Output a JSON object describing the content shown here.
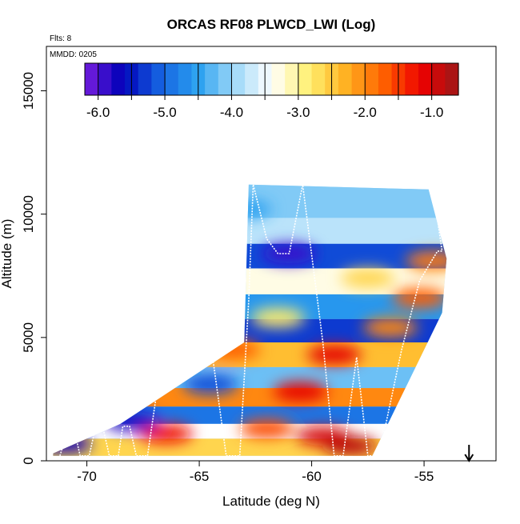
{
  "chart_data": {
    "type": "heatmap",
    "title": "ORCAS RF08 PLWCD_LWI (Log)",
    "subtitle_flights": "Flts: 8",
    "mmdd_label": "MMDD: 0205",
    "xlabel": "Latitude (deg N)",
    "ylabel": "Altitude (m)",
    "xlim": [
      -71.8,
      -51.8
    ],
    "ylim": [
      0,
      16800
    ],
    "x_ticks": [
      -70,
      -65,
      -60,
      -55
    ],
    "x_tick_labels": [
      "-70",
      "-65",
      "-60",
      "-55"
    ],
    "y_ticks": [
      0,
      5000,
      10000,
      15000
    ],
    "y_tick_labels": [
      "0",
      "5000",
      "10000",
      "15000"
    ],
    "colorbar": {
      "range": [
        -6.2,
        -0.6
      ],
      "ticks": [
        -6.0,
        -5.0,
        -4.0,
        -3.0,
        -2.0,
        -1.0
      ],
      "tick_labels": [
        "-6.0",
        "-5.0",
        "-4.0",
        "-3.0",
        "-2.0",
        "-1.0"
      ],
      "colors": [
        "#7a1fe0",
        "#0000b8",
        "#1560e0",
        "#2aa0f0",
        "#9ed8f8",
        "#ffffff",
        "#fff070",
        "#ffb020",
        "#ff6000",
        "#ee0000",
        "#9c1818"
      ]
    },
    "grid": false,
    "legend": "colorbar top, inside plot area",
    "arrow_marker": {
      "lat": -53,
      "direction": "down"
    },
    "domain_outline": [
      [
        -71.5,
        300
      ],
      [
        -68.5,
        1500
      ],
      [
        -63.0,
        4800
      ],
      [
        -62.8,
        11200
      ],
      [
        -54.8,
        11000
      ],
      [
        -54.0,
        8200
      ],
      [
        -54.2,
        6000
      ],
      [
        -57.3,
        200
      ],
      [
        -71.5,
        200
      ]
    ],
    "bands": [
      {
        "alt": 600,
        "value": -2.6
      },
      {
        "alt": 1200,
        "value": -3.4
      },
      {
        "alt": 1800,
        "value": -4.9
      },
      {
        "alt": 2600,
        "value": -2.0
      },
      {
        "alt": 3300,
        "value": -4.2
      },
      {
        "alt": 4300,
        "value": -2.4
      },
      {
        "alt": 5300,
        "value": -5.3
      },
      {
        "alt": 6200,
        "value": -4.6
      },
      {
        "alt": 7300,
        "value": -3.3
      },
      {
        "alt": 8300,
        "value": -5.2
      },
      {
        "alt": 9300,
        "value": -3.8
      },
      {
        "alt": 10400,
        "value": -4.1
      }
    ],
    "hotspots": [
      {
        "lat": -60.5,
        "alt": 2800,
        "value": -1.1
      },
      {
        "lat": -59.5,
        "alt": 1000,
        "value": -1.0
      },
      {
        "lat": -58.3,
        "alt": 600,
        "value": -0.8
      },
      {
        "lat": -59.0,
        "alt": 4300,
        "value": -1.1
      },
      {
        "lat": -56.5,
        "alt": 5400,
        "value": -2.0
      },
      {
        "lat": -55.2,
        "alt": 6600,
        "value": -1.7
      },
      {
        "lat": -54.6,
        "alt": 8100,
        "value": -1.9
      },
      {
        "lat": -57.5,
        "alt": 7400,
        "value": -2.6
      },
      {
        "lat": -63.5,
        "alt": 4500,
        "value": -1.7
      },
      {
        "lat": -66.5,
        "alt": 1100,
        "value": -1.2
      },
      {
        "lat": -61.5,
        "alt": 5800,
        "value": -2.8
      },
      {
        "lat": -61.0,
        "alt": 8400,
        "value": -5.9
      },
      {
        "lat": -63.0,
        "alt": 10200,
        "value": -4.5
      },
      {
        "lat": -68.0,
        "alt": 1600,
        "value": -5.8
      },
      {
        "lat": -71.0,
        "alt": 700,
        "value": -5.7
      },
      {
        "lat": -62.0,
        "alt": 1300,
        "value": -1.6
      },
      {
        "lat": -64.5,
        "alt": 3100,
        "value": -5.2
      }
    ],
    "flight_track": [
      [
        -71.2,
        200
      ],
      [
        -70.8,
        1400
      ],
      [
        -70.6,
        1400
      ],
      [
        -70.3,
        200
      ],
      [
        -69.9,
        200
      ],
      [
        -69.6,
        1400
      ],
      [
        -69.3,
        1400
      ],
      [
        -69.0,
        200
      ],
      [
        -68.6,
        200
      ],
      [
        -68.4,
        1400
      ],
      [
        -68.1,
        1400
      ],
      [
        -67.8,
        200
      ],
      [
        -67.3,
        200
      ],
      [
        -66.6,
        4600
      ],
      [
        -66.3,
        6500
      ],
      [
        -64.8,
        6800
      ],
      [
        -63.8,
        200
      ],
      [
        -63.2,
        200
      ],
      [
        -62.8,
        6500
      ],
      [
        -62.6,
        11200
      ],
      [
        -62.0,
        9000
      ],
      [
        -61.5,
        8400
      ],
      [
        -61.0,
        8400
      ],
      [
        -60.4,
        11200
      ],
      [
        -59.5,
        4800
      ],
      [
        -59.0,
        200
      ],
      [
        -58.6,
        200
      ],
      [
        -58.0,
        4200
      ],
      [
        -57.5,
        200
      ],
      [
        -57.0,
        200
      ],
      [
        -56.0,
        4500
      ],
      [
        -55.2,
        7300
      ],
      [
        -54.4,
        8500
      ],
      [
        -54.2,
        8500
      ],
      [
        -54.6,
        11000
      ]
    ]
  }
}
